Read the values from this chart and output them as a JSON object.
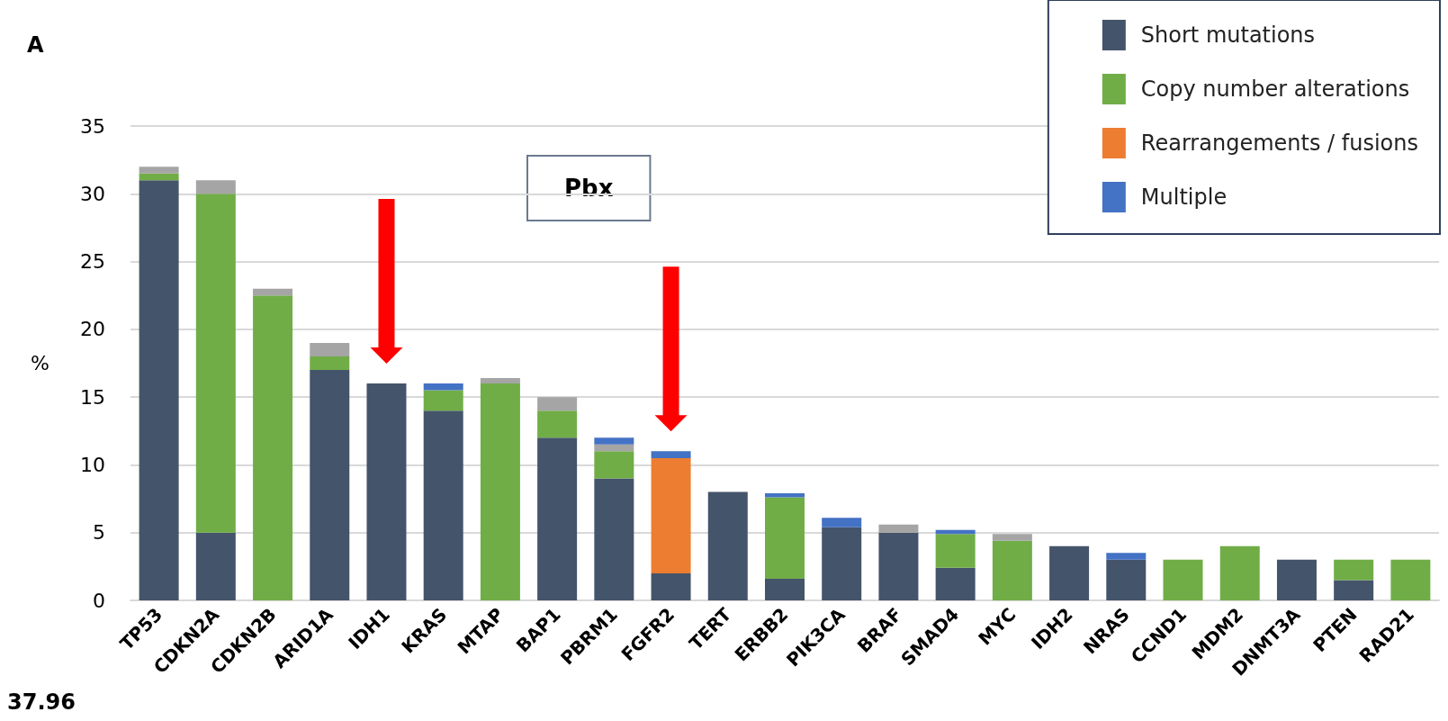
{
  "chart_data": {
    "type": "bar",
    "stacked": true,
    "ylabel": "%",
    "annotations": [
      "A",
      "Pbx",
      "37.96"
    ],
    "categories": [
      "TP53",
      "CDKN2A",
      "CDKN2B",
      "ARID1A",
      "IDH1",
      "KRAS",
      "MTAP",
      "BAP1",
      "PBRM1",
      "FGFR2",
      "TERT",
      "ERBB2",
      "PIK3CA",
      "BRAF",
      "SMAD4",
      "MYC",
      "IDH2",
      "NRAS",
      "CCND1",
      "MDM2",
      "DNMT3A",
      "PTEN",
      "RAD21"
    ],
    "series": [
      {
        "name": "Short mutations",
        "color": "#44546a",
        "values": [
          31,
          5,
          null,
          17,
          16,
          14,
          null,
          12,
          9,
          2,
          8,
          1.6,
          5.4,
          5,
          2.4,
          null,
          4,
          3,
          null,
          null,
          3,
          1.5,
          null
        ]
      },
      {
        "name": "Copy number alterations",
        "color": "#70ad47",
        "values": [
          0.5,
          25,
          22.5,
          1,
          null,
          1.5,
          16,
          2,
          2,
          null,
          null,
          6,
          null,
          null,
          2.5,
          4.4,
          null,
          null,
          3,
          4,
          null,
          1.5,
          3
        ]
      },
      {
        "name": "Rearrangements / fusions",
        "color": "#ed7d31",
        "values": [
          null,
          null,
          null,
          null,
          null,
          null,
          null,
          null,
          null,
          8.5,
          null,
          null,
          null,
          null,
          null,
          null,
          null,
          null,
          null,
          null,
          null,
          null,
          null
        ]
      },
      {
        "color": "#a5a5a5",
        "values": [
          0.5,
          1,
          0.5,
          1,
          null,
          null,
          0.4,
          1,
          0.5,
          null,
          null,
          null,
          null,
          0.6,
          null,
          0.5,
          null,
          null,
          null,
          null,
          null,
          null,
          null
        ]
      },
      {
        "name": "Multiple",
        "color": "#4472c4",
        "values": [
          null,
          null,
          null,
          null,
          null,
          0.5,
          null,
          null,
          0.5,
          0.5,
          null,
          0.3,
          0.7,
          null,
          0.3,
          null,
          null,
          0.5,
          null,
          null,
          null,
          null,
          null
        ]
      }
    ],
    "ylim": [
      0,
      35
    ],
    "yticks": [
      0,
      5,
      10,
      15,
      20,
      25,
      30,
      35
    ],
    "grid": "y",
    "legend": "top right"
  }
}
